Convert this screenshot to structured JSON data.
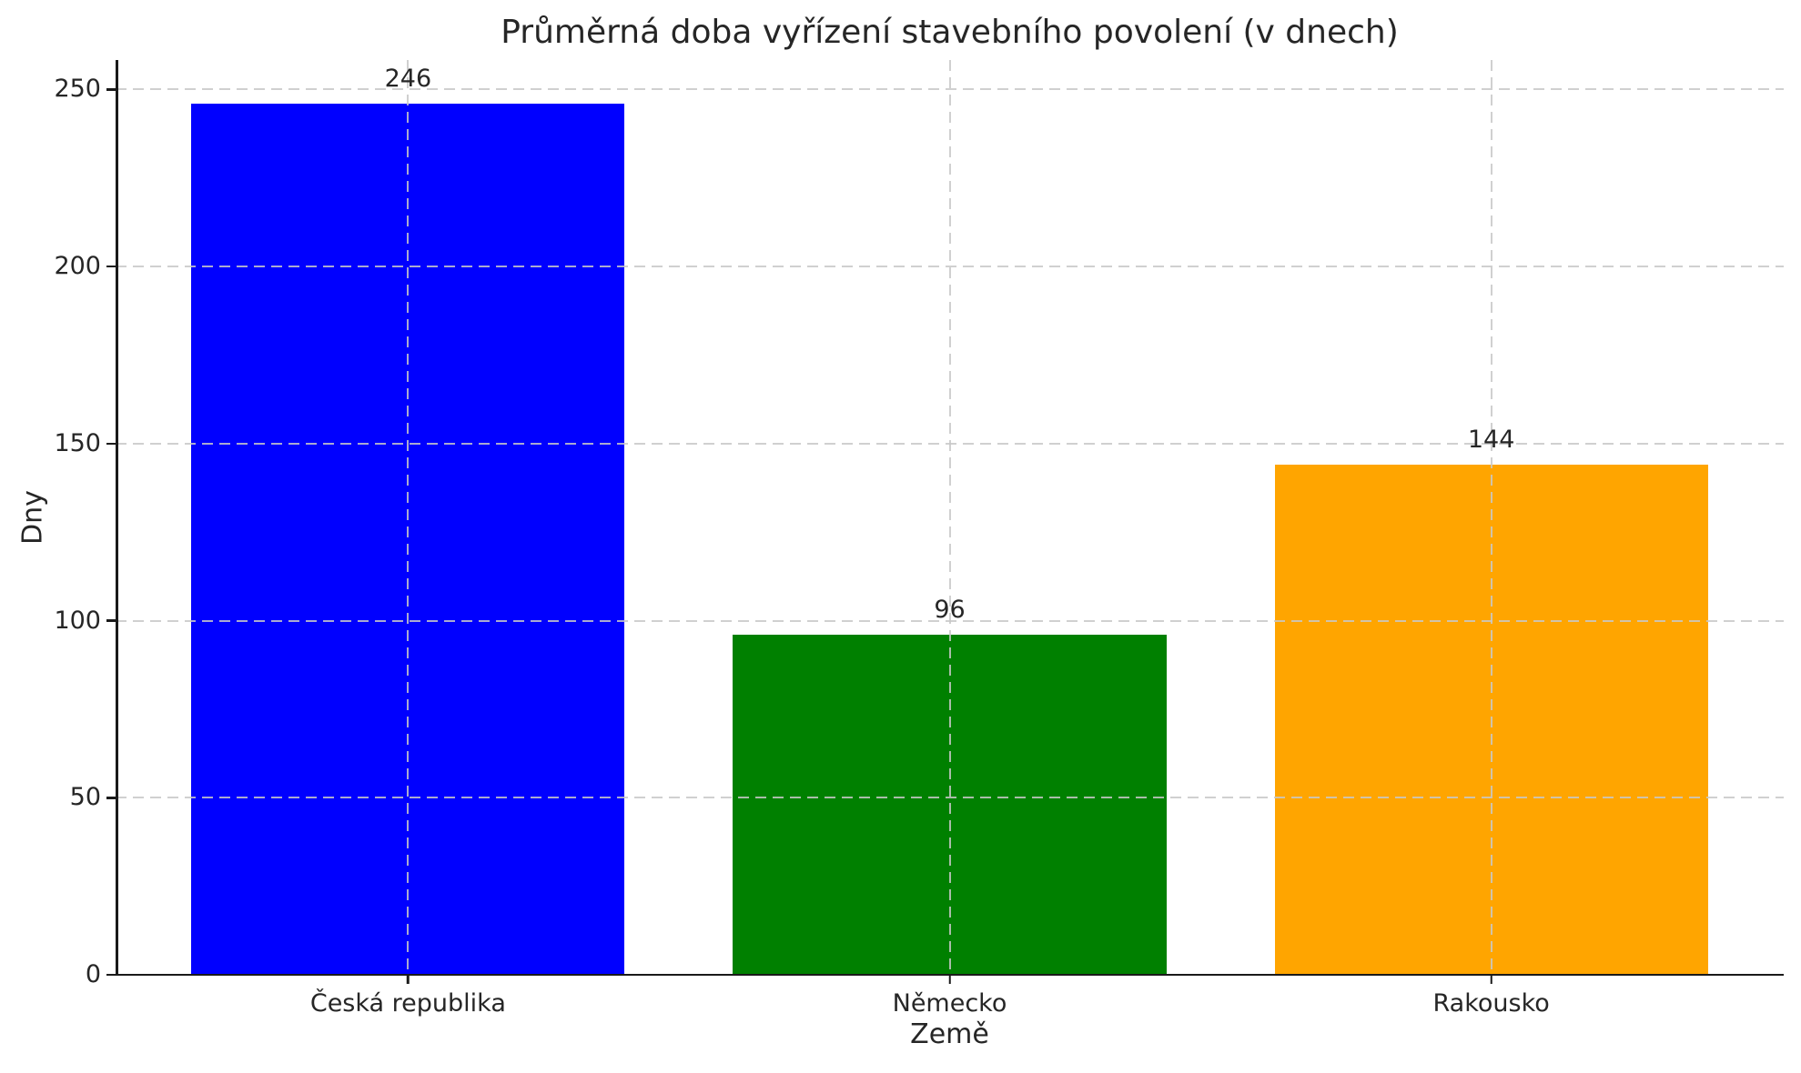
{
  "chart_data": {
    "type": "bar",
    "title": "Průměrná doba vyřízení stavebního povolení (v dnech)",
    "xlabel": "Země",
    "ylabel": "Dny",
    "categories": [
      "Česká republika",
      "Německo",
      "Rakousko"
    ],
    "values": [
      246,
      96,
      144
    ],
    "value_labels": [
      "246",
      "96",
      "144"
    ],
    "bar_colors": [
      "#0000ff",
      "#008000",
      "#ffa500"
    ],
    "yticks": [
      0,
      50,
      100,
      150,
      200,
      250
    ],
    "ylim": [
      0,
      258.3
    ],
    "grid": true,
    "grid_style": "dashed",
    "legend_position": "none"
  },
  "style": {
    "text_color": "#262626",
    "grid_color": "#c8c8c8",
    "spine_color": "#1a1a1a",
    "background": "#ffffff"
  }
}
